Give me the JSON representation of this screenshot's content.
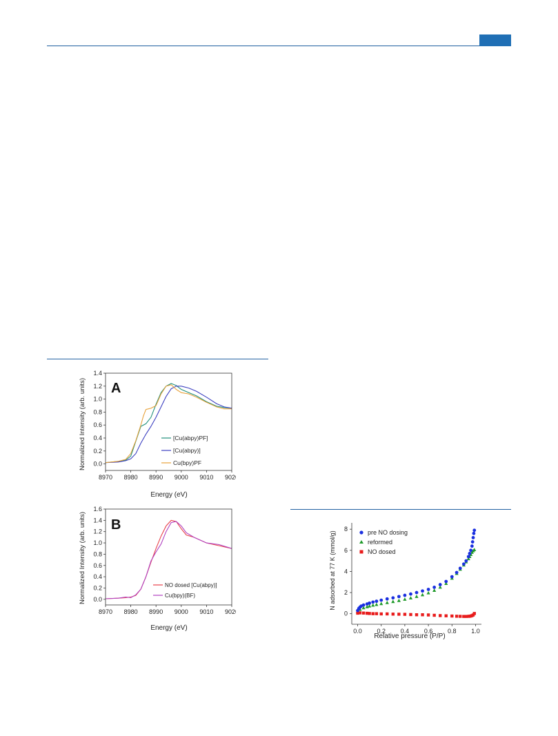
{
  "panels": {
    "A": {
      "label": "A",
      "ylabel": "Normalized Intensity (arb. units)",
      "xlabel": "Energy (eV)",
      "xticks": [
        "8970",
        "8980",
        "8990",
        "9000",
        "9010",
        "9020"
      ],
      "yticks": [
        "0.0",
        "0.2",
        "0.4",
        "0.6",
        "0.8",
        "1.0",
        "1.2",
        "1.4"
      ],
      "legend": [
        "[Cu(abpy)PF]",
        "[Cu(abpy)]",
        "Cu(bpy)PF"
      ]
    },
    "B": {
      "label": "B",
      "ylabel": "Normalized Intensity (arb. units)",
      "xlabel": "Energy (eV)",
      "xticks": [
        "8970",
        "8980",
        "8990",
        "9000",
        "9010",
        "9020"
      ],
      "yticks": [
        "0.0",
        "0.2",
        "0.4",
        "0.6",
        "0.8",
        "1.0",
        "1.2",
        "1.4",
        "1.6"
      ],
      "legend": [
        "NO dosed [Cu(abpy)]",
        "Cu(bpy)(BF)"
      ]
    },
    "C": {
      "ylabel": "N adsorbed at 77 K (mmol/g)",
      "xlabel": "Relative pressure (P/P)",
      "xticks": [
        "0.0",
        "0.2",
        "0.4",
        "0.6",
        "0.8",
        "1.0"
      ],
      "yticks": [
        "0",
        "2",
        "4",
        "6",
        "8"
      ],
      "legend": [
        "pre NO dosing",
        "reformed",
        "NO dosed"
      ]
    }
  },
  "colors": {
    "teal": "#1f8f7a",
    "blue": "#3b3fc0",
    "orange": "#e8a23a",
    "red": "#e8404a",
    "magenta": "#b040c0",
    "dot_blue": "#1a2fe0",
    "dot_green": "#1f9a2a",
    "dot_red": "#e81c1c",
    "rule": "#1f5fa0"
  },
  "chart_data": [
    {
      "type": "line",
      "title": "A",
      "xlabel": "Energy (eV)",
      "ylabel": "Normalized Intensity (arb. units)",
      "xlim": [
        8970,
        9020
      ],
      "ylim": [
        -0.1,
        1.4
      ],
      "legend_position": "bottom-right",
      "series": [
        {
          "name": "[Cu(abpy)PF]",
          "color": "#1f8f7a",
          "x": [
            8970,
            8975,
            8978,
            8980,
            8982,
            8984,
            8986,
            8988,
            8990,
            8992,
            8994,
            8996,
            8998,
            9000,
            9003,
            9006,
            9010,
            9014,
            9017,
            9020
          ],
          "y": [
            0.02,
            0.04,
            0.06,
            0.12,
            0.35,
            0.58,
            0.62,
            0.72,
            0.92,
            1.1,
            1.2,
            1.24,
            1.21,
            1.15,
            1.1,
            1.05,
            0.96,
            0.89,
            0.87,
            0.86
          ]
        },
        {
          "name": "[Cu(abpy)]",
          "color": "#3b3fc0",
          "x": [
            8970,
            8975,
            8978,
            8980,
            8982,
            8984,
            8986,
            8988,
            8990,
            8992,
            8994,
            8996,
            8998,
            9000,
            9003,
            9006,
            9010,
            9014,
            9017,
            9020
          ],
          "y": [
            0.02,
            0.03,
            0.05,
            0.08,
            0.16,
            0.32,
            0.46,
            0.58,
            0.72,
            0.88,
            1.04,
            1.16,
            1.2,
            1.2,
            1.17,
            1.12,
            1.03,
            0.93,
            0.88,
            0.86
          ]
        },
        {
          "name": "Cu(bpy)PF",
          "color": "#e8a23a",
          "x": [
            8970,
            8975,
            8978,
            8980,
            8982,
            8984,
            8985,
            8986,
            8988,
            8990,
            8992,
            8994,
            8996,
            8998,
            9000,
            9003,
            9006,
            9010,
            9014,
            9017,
            9020
          ],
          "y": [
            0.02,
            0.04,
            0.07,
            0.16,
            0.36,
            0.6,
            0.74,
            0.84,
            0.86,
            0.9,
            1.08,
            1.2,
            1.22,
            1.15,
            1.1,
            1.08,
            1.03,
            0.95,
            0.88,
            0.85,
            0.85
          ]
        }
      ]
    },
    {
      "type": "line",
      "title": "B",
      "xlabel": "Energy (eV)",
      "ylabel": "Normalized Intensity (arb. units)",
      "xlim": [
        8970,
        9020
      ],
      "ylim": [
        -0.1,
        1.6
      ],
      "legend_position": "bottom-right",
      "series": [
        {
          "name": "NO dosed [Cu(abpy)]",
          "color": "#e8404a",
          "x": [
            8970,
            8975,
            8978,
            8980,
            8982,
            8984,
            8986,
            8988,
            8990,
            8992,
            8994,
            8996,
            8998,
            9000,
            9002,
            9005,
            9010,
            9015,
            9020
          ],
          "y": [
            0.01,
            0.02,
            0.03,
            0.04,
            0.07,
            0.18,
            0.4,
            0.66,
            0.9,
            1.12,
            1.3,
            1.4,
            1.38,
            1.25,
            1.14,
            1.1,
            1.0,
            0.95,
            0.9
          ]
        },
        {
          "name": "Cu(bpy)(BF)",
          "color": "#b040c0",
          "x": [
            8970,
            8975,
            8978,
            8980,
            8982,
            8984,
            8986,
            8988,
            8990,
            8992,
            8994,
            8996,
            8998,
            9000,
            9002,
            9005,
            9010,
            9015,
            9020
          ],
          "y": [
            0.01,
            0.02,
            0.04,
            0.03,
            0.08,
            0.18,
            0.4,
            0.68,
            0.84,
            0.98,
            1.2,
            1.36,
            1.38,
            1.3,
            1.18,
            1.1,
            1.0,
            0.97,
            0.9
          ]
        }
      ]
    },
    {
      "type": "scatter",
      "xlabel": "Relative pressure (P/P)",
      "ylabel": "N adsorbed at 77 K (mmol/g)",
      "xlim": [
        -0.05,
        1.05
      ],
      "ylim": [
        -1,
        8.6
      ],
      "legend_position": "top-left",
      "series": [
        {
          "name": "pre NO dosing",
          "color": "#1a2fe0",
          "marker": "circle",
          "x": [
            0.0,
            0.01,
            0.02,
            0.03,
            0.05,
            0.08,
            0.1,
            0.13,
            0.16,
            0.2,
            0.25,
            0.3,
            0.35,
            0.4,
            0.45,
            0.5,
            0.55,
            0.6,
            0.65,
            0.7,
            0.75,
            0.8,
            0.84,
            0.87,
            0.9,
            0.92,
            0.94,
            0.95,
            0.96,
            0.97,
            0.975,
            0.98,
            0.985,
            0.99
          ],
          "y": [
            0.3,
            0.5,
            0.62,
            0.72,
            0.82,
            0.92,
            1.0,
            1.1,
            1.18,
            1.28,
            1.4,
            1.5,
            1.62,
            1.74,
            1.86,
            2.0,
            2.15,
            2.3,
            2.5,
            2.75,
            3.05,
            3.5,
            3.9,
            4.3,
            4.7,
            5.0,
            5.4,
            5.7,
            6.0,
            6.4,
            6.8,
            7.2,
            7.6,
            7.9
          ]
        },
        {
          "name": "reformed",
          "color": "#1f9a2a",
          "marker": "triangle",
          "x": [
            0.0,
            0.02,
            0.05,
            0.08,
            0.1,
            0.13,
            0.16,
            0.2,
            0.25,
            0.3,
            0.35,
            0.4,
            0.45,
            0.5,
            0.55,
            0.6,
            0.65,
            0.7,
            0.75,
            0.8,
            0.84,
            0.87,
            0.9,
            0.92,
            0.94,
            0.95,
            0.96,
            0.97,
            0.98,
            0.99
          ],
          "y": [
            0.2,
            0.4,
            0.55,
            0.65,
            0.72,
            0.8,
            0.86,
            0.94,
            1.04,
            1.14,
            1.24,
            1.36,
            1.48,
            1.62,
            1.78,
            1.96,
            2.2,
            2.5,
            2.85,
            3.35,
            3.8,
            4.2,
            4.6,
            4.9,
            5.2,
            5.4,
            5.6,
            5.8,
            5.95,
            6.05
          ]
        },
        {
          "name": "NO dosed",
          "color": "#e81c1c",
          "marker": "square",
          "x": [
            0.0,
            0.02,
            0.05,
            0.08,
            0.1,
            0.13,
            0.16,
            0.2,
            0.25,
            0.3,
            0.35,
            0.4,
            0.45,
            0.5,
            0.55,
            0.6,
            0.65,
            0.7,
            0.75,
            0.8,
            0.84,
            0.87,
            0.9,
            0.92,
            0.94,
            0.95,
            0.96,
            0.97,
            0.98,
            0.99
          ],
          "y": [
            0.05,
            0.08,
            0.06,
            0.04,
            0.02,
            0.0,
            0.0,
            -0.02,
            -0.02,
            -0.04,
            -0.05,
            -0.06,
            -0.08,
            -0.1,
            -0.1,
            -0.12,
            -0.15,
            -0.18,
            -0.2,
            -0.22,
            -0.24,
            -0.25,
            -0.26,
            -0.26,
            -0.25,
            -0.24,
            -0.22,
            -0.18,
            -0.12,
            0.02
          ]
        }
      ]
    }
  ]
}
